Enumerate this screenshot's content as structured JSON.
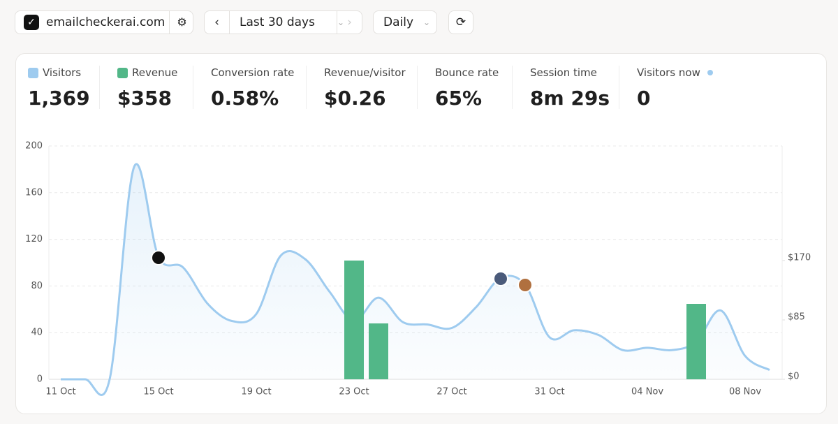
{
  "toolbar": {
    "site": "emailcheckerai.com",
    "range": "Last 30 days",
    "interval": "Daily"
  },
  "metrics": [
    {
      "label": "Visitors",
      "value": "1,369"
    },
    {
      "label": "Revenue",
      "value": "$358"
    },
    {
      "label": "Conversion rate",
      "value": "0.58%"
    },
    {
      "label": "Revenue/visitor",
      "value": "$0.26"
    },
    {
      "label": "Bounce rate",
      "value": "65%"
    },
    {
      "label": "Session time",
      "value": "8m 29s"
    },
    {
      "label": "Visitors now",
      "value": "0"
    }
  ],
  "chart_data": {
    "type": "line-bar",
    "categories": [
      "11 Oct",
      null,
      null,
      null,
      "15 Oct",
      null,
      null,
      null,
      "19 Oct",
      null,
      null,
      null,
      "23 Oct",
      null,
      null,
      null,
      "27 Oct",
      null,
      null,
      null,
      "31 Oct",
      null,
      null,
      null,
      "04 Nov",
      null,
      null,
      null,
      "08 Nov",
      null
    ],
    "series": [
      {
        "name": "Visitors",
        "color": "#9ecbef",
        "values": [
          0,
          0,
          0,
          182,
          105,
          96,
          65,
          50,
          56,
          106,
          103,
          75,
          50,
          70,
          49,
          47,
          44,
          62,
          87,
          81,
          36,
          42,
          38,
          25,
          27,
          25,
          32,
          59,
          20,
          8
        ]
      },
      {
        "name": "Revenue",
        "color": "#52b788",
        "axis": "y2",
        "values": [
          0,
          0,
          0,
          0,
          0,
          0,
          0,
          0,
          0,
          0,
          0,
          0,
          170,
          80,
          0,
          0,
          0,
          0,
          0,
          0,
          0,
          0,
          0,
          0,
          0,
          0,
          108,
          0,
          0,
          0
        ]
      }
    ],
    "ylim": [
      0,
      200
    ],
    "yticks": [
      0,
      40,
      80,
      120,
      160,
      200
    ],
    "y2lim": [
      0,
      334
    ],
    "y2ticks": [
      {
        "value": 0,
        "label": "$0"
      },
      {
        "value": 85,
        "label": "$85"
      },
      {
        "value": 170,
        "label": "$170"
      }
    ],
    "grid": true
  }
}
